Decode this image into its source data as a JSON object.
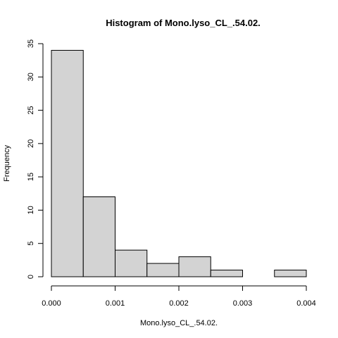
{
  "chart_data": {
    "type": "bar",
    "title": "Histogram of Mono.lyso_CL_.54.02.",
    "xlabel": "Mono.lyso_CL_.54.02.",
    "ylabel": "Frequency",
    "bins": [
      {
        "x0": 0.0,
        "x1": 0.0005,
        "count": 34
      },
      {
        "x0": 0.0005,
        "x1": 0.001,
        "count": 12
      },
      {
        "x0": 0.001,
        "x1": 0.0015,
        "count": 4
      },
      {
        "x0": 0.0015,
        "x1": 0.002,
        "count": 2
      },
      {
        "x0": 0.002,
        "x1": 0.0025,
        "count": 3
      },
      {
        "x0": 0.0025,
        "x1": 0.003,
        "count": 1
      },
      {
        "x0": 0.003,
        "x1": 0.0035,
        "count": 0
      },
      {
        "x0": 0.0035,
        "x1": 0.004,
        "count": 1
      }
    ],
    "xlim": [
      0,
      0.004
    ],
    "ylim": [
      0,
      35
    ],
    "x_ticks": [
      "0.000",
      "0.001",
      "0.002",
      "0.003",
      "0.004"
    ],
    "y_ticks": [
      "0",
      "5",
      "10",
      "15",
      "20",
      "25",
      "30",
      "35"
    ],
    "grid": false
  }
}
